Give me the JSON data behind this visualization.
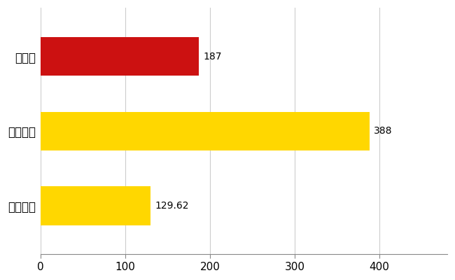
{
  "categories": [
    "全国平均",
    "全国最大",
    "静岡県"
  ],
  "values": [
    129.62,
    388,
    187
  ],
  "bar_colors": [
    "#FFD700",
    "#FFD700",
    "#CC1111"
  ],
  "value_labels": [
    "129.62",
    "388",
    "187"
  ],
  "xlim": [
    0,
    480
  ],
  "xticks": [
    0,
    100,
    200,
    300,
    400
  ],
  "background_color": "#FFFFFF",
  "grid_color": "#CCCCCC",
  "bar_height": 0.52,
  "label_fontsize": 12,
  "tick_fontsize": 11,
  "value_fontsize": 10,
  "figsize": [
    6.5,
    4.0
  ],
  "dpi": 100
}
